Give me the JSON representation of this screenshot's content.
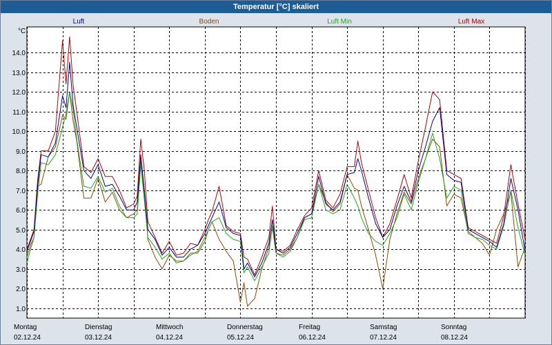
{
  "window": {
    "title": "Temperatur [°C] skaliert"
  },
  "chart_data": {
    "type": "line",
    "title": "Temperatur [°C] skaliert",
    "ylabel": "°C",
    "ylim": [
      0.5,
      15.3
    ],
    "yticks": [
      1.0,
      2.0,
      3.0,
      4.0,
      5.0,
      6.0,
      7.0,
      8.0,
      9.0,
      10.0,
      11.0,
      12.0,
      13.0,
      14.0
    ],
    "ytick_labels": [
      "1.0",
      "2.0",
      "3.0",
      "4.0",
      "5.0",
      "6.0",
      "7.0",
      "8.0",
      "9.0",
      "10.0",
      "11.0",
      "12.0",
      "13.0",
      "14.0"
    ],
    "xlim": [
      0,
      7
    ],
    "days": [
      {
        "name": "Montag",
        "date": "02.12.24"
      },
      {
        "name": "Dienstag",
        "date": "03.12.24"
      },
      {
        "name": "Mittwoch",
        "date": "04.12.24"
      },
      {
        "name": "Donnerstag",
        "date": "05.12.24"
      },
      {
        "name": "Freitag",
        "date": "06.12.24"
      },
      {
        "name": "Samstag",
        "date": "07.12.24"
      },
      {
        "name": "Sonntag",
        "date": "08.12.24"
      }
    ],
    "series": [
      {
        "name": "Luft",
        "color": "#00008b",
        "x": [
          0,
          0.05,
          0.1,
          0.15,
          0.2,
          0.3,
          0.4,
          0.5,
          0.55,
          0.6,
          0.65,
          0.7,
          0.8,
          0.9,
          1.0,
          1.1,
          1.2,
          1.3,
          1.4,
          1.5,
          1.55,
          1.6,
          1.65,
          1.7,
          1.8,
          1.9,
          2.0,
          2.1,
          2.2,
          2.3,
          2.4,
          2.5,
          2.55,
          2.6,
          2.7,
          2.8,
          2.9,
          3.0,
          3.05,
          3.1,
          3.2,
          3.3,
          3.4,
          3.45,
          3.5,
          3.6,
          3.7,
          3.8,
          3.9,
          4.0,
          4.1,
          4.2,
          4.3,
          4.4,
          4.5,
          4.6,
          4.65,
          4.7,
          4.8,
          4.9,
          5.0,
          5.1,
          5.2,
          5.3,
          5.4,
          5.5,
          5.6,
          5.7,
          5.8,
          5.9,
          6.0,
          6.1,
          6.2,
          6.3,
          6.4,
          6.5,
          6.6,
          6.7,
          6.8,
          6.9,
          7.0
        ],
        "values": [
          3.9,
          4.4,
          4.9,
          7.2,
          8.8,
          8.7,
          9.4,
          11.8,
          11.2,
          13.5,
          11.3,
          10.2,
          8.0,
          7.6,
          8.3,
          7.2,
          7.3,
          6.7,
          6.0,
          6.0,
          6.4,
          8.8,
          7.0,
          5.0,
          4.5,
          3.7,
          4.1,
          3.6,
          3.6,
          4.0,
          4.2,
          4.8,
          5.2,
          5.6,
          6.4,
          5.1,
          4.8,
          4.7,
          3.0,
          3.3,
          2.6,
          3.3,
          4.3,
          5.5,
          4.0,
          3.8,
          4.1,
          4.8,
          5.6,
          5.8,
          7.7,
          6.3,
          6.0,
          6.4,
          7.8,
          7.9,
          8.6,
          8.0,
          6.6,
          5.3,
          4.6,
          5.0,
          6.2,
          7.2,
          6.4,
          8.0,
          9.2,
          10.5,
          11.2,
          7.8,
          7.5,
          7.4,
          5.0,
          4.8,
          4.6,
          4.4,
          4.1,
          5.3,
          7.6,
          6.0,
          3.9
        ]
      },
      {
        "name": "Boden",
        "color": "#8b4a00",
        "x": [
          0,
          0.05,
          0.1,
          0.15,
          0.2,
          0.3,
          0.4,
          0.5,
          0.55,
          0.6,
          0.65,
          0.7,
          0.8,
          0.9,
          1.0,
          1.1,
          1.2,
          1.3,
          1.4,
          1.5,
          1.55,
          1.6,
          1.65,
          1.7,
          1.8,
          1.9,
          2.0,
          2.1,
          2.2,
          2.3,
          2.4,
          2.5,
          2.55,
          2.6,
          2.7,
          2.8,
          2.9,
          3.0,
          3.05,
          3.1,
          3.2,
          3.3,
          3.4,
          3.45,
          3.5,
          3.6,
          3.7,
          3.8,
          3.9,
          4.0,
          4.1,
          4.2,
          4.3,
          4.4,
          4.5,
          4.6,
          4.65,
          4.7,
          4.8,
          4.9,
          5.0,
          5.1,
          5.2,
          5.3,
          5.4,
          5.5,
          5.6,
          5.7,
          5.8,
          5.9,
          6.0,
          6.1,
          6.2,
          6.3,
          6.4,
          6.5,
          6.6,
          6.7,
          6.8,
          6.9,
          7.0
        ],
        "values": [
          3.6,
          4.2,
          4.6,
          7.2,
          7.3,
          8.7,
          9.2,
          10.8,
          10.6,
          12.0,
          10.5,
          9.5,
          6.6,
          6.6,
          7.6,
          6.4,
          6.9,
          6.0,
          5.6,
          5.8,
          6.0,
          8.5,
          6.8,
          4.5,
          3.6,
          3.0,
          3.7,
          3.4,
          3.4,
          3.8,
          3.8,
          4.4,
          5.0,
          5.4,
          4.5,
          3.9,
          3.4,
          1.3,
          2.3,
          1.1,
          1.5,
          3.0,
          4.1,
          5.1,
          3.8,
          3.7,
          4.0,
          4.6,
          5.6,
          5.8,
          7.3,
          6.4,
          5.9,
          6.3,
          7.8,
          7.1,
          7.0,
          6.2,
          5.0,
          3.7,
          2.0,
          4.5,
          5.8,
          6.9,
          6.3,
          7.6,
          8.6,
          9.6,
          9.2,
          6.2,
          6.8,
          6.6,
          4.9,
          4.6,
          4.3,
          3.7,
          5.0,
          5.8,
          6.9,
          3.1,
          4.1
        ]
      },
      {
        "name": "Luft Min",
        "color": "#1ea81e",
        "x": [
          0,
          0.05,
          0.1,
          0.15,
          0.2,
          0.3,
          0.4,
          0.5,
          0.55,
          0.6,
          0.65,
          0.7,
          0.8,
          0.9,
          1.0,
          1.1,
          1.2,
          1.3,
          1.4,
          1.5,
          1.55,
          1.6,
          1.65,
          1.7,
          1.8,
          1.9,
          2.0,
          2.1,
          2.2,
          2.3,
          2.4,
          2.5,
          2.55,
          2.6,
          2.7,
          2.8,
          2.9,
          3.0,
          3.05,
          3.1,
          3.2,
          3.3,
          3.4,
          3.45,
          3.5,
          3.6,
          3.7,
          3.8,
          3.9,
          4.0,
          4.1,
          4.2,
          4.3,
          4.4,
          4.5,
          4.6,
          4.65,
          4.7,
          4.8,
          4.9,
          5.0,
          5.1,
          5.2,
          5.3,
          5.4,
          5.5,
          5.6,
          5.7,
          5.8,
          5.9,
          6.0,
          6.1,
          6.2,
          6.3,
          6.4,
          6.5,
          6.6,
          6.7,
          6.8,
          6.9,
          7.0
        ],
        "values": [
          3.3,
          4.0,
          4.6,
          6.8,
          8.4,
          8.3,
          8.8,
          10.2,
          10.9,
          12.0,
          11.1,
          9.6,
          7.2,
          7.1,
          7.7,
          6.9,
          7.1,
          6.2,
          5.6,
          5.6,
          5.8,
          8.3,
          6.5,
          4.6,
          4.1,
          3.5,
          3.8,
          3.3,
          3.4,
          3.7,
          3.9,
          4.6,
          5.0,
          5.4,
          5.6,
          4.8,
          4.5,
          4.4,
          2.8,
          3.1,
          2.4,
          3.1,
          3.8,
          5.2,
          3.8,
          3.6,
          3.9,
          4.6,
          5.5,
          5.6,
          7.3,
          6.0,
          5.8,
          6.0,
          7.3,
          6.6,
          6.2,
          5.6,
          4.8,
          4.4,
          4.2,
          4.8,
          5.6,
          6.8,
          6.0,
          7.4,
          8.6,
          9.9,
          8.6,
          6.6,
          7.2,
          7.0,
          4.8,
          4.6,
          4.5,
          4.2,
          4.0,
          5.2,
          7.0,
          5.1,
          3.7
        ]
      },
      {
        "name": "Luft Max",
        "color": "#b40000",
        "x": [
          0,
          0.05,
          0.1,
          0.15,
          0.2,
          0.3,
          0.4,
          0.5,
          0.55,
          0.6,
          0.65,
          0.7,
          0.8,
          0.9,
          1.0,
          1.1,
          1.2,
          1.3,
          1.4,
          1.5,
          1.55,
          1.6,
          1.65,
          1.7,
          1.8,
          1.9,
          2.0,
          2.1,
          2.2,
          2.3,
          2.4,
          2.5,
          2.55,
          2.6,
          2.7,
          2.8,
          2.9,
          3.0,
          3.05,
          3.1,
          3.2,
          3.3,
          3.4,
          3.45,
          3.5,
          3.6,
          3.7,
          3.8,
          3.9,
          4.0,
          4.1,
          4.2,
          4.3,
          4.4,
          4.5,
          4.6,
          4.65,
          4.7,
          4.8,
          4.9,
          5.0,
          5.1,
          5.2,
          5.3,
          5.4,
          5.5,
          5.6,
          5.7,
          5.8,
          5.9,
          6.0,
          6.1,
          6.2,
          6.3,
          6.4,
          6.5,
          6.6,
          6.7,
          6.8,
          6.9,
          7.0
        ],
        "values": [
          4.0,
          4.5,
          5.0,
          7.5,
          9.0,
          9.0,
          10.0,
          14.6,
          12.4,
          14.8,
          12.3,
          11.0,
          8.2,
          7.9,
          8.6,
          7.7,
          7.7,
          7.0,
          6.1,
          6.3,
          6.7,
          9.6,
          8.0,
          5.4,
          4.6,
          3.8,
          4.4,
          3.7,
          3.8,
          4.3,
          4.2,
          5.0,
          5.5,
          5.9,
          7.2,
          5.2,
          4.9,
          4.8,
          3.6,
          3.5,
          2.7,
          3.6,
          4.6,
          6.2,
          4.0,
          3.9,
          4.2,
          5.0,
          5.7,
          6.1,
          8.0,
          6.5,
          6.1,
          6.8,
          8.2,
          8.2,
          9.5,
          8.4,
          7.0,
          5.6,
          4.6,
          5.3,
          6.5,
          7.8,
          6.6,
          8.5,
          10.2,
          12.0,
          11.6,
          8.0,
          7.8,
          7.6,
          5.1,
          4.9,
          4.7,
          4.5,
          4.3,
          5.7,
          8.3,
          6.3,
          4.5
        ]
      }
    ]
  }
}
